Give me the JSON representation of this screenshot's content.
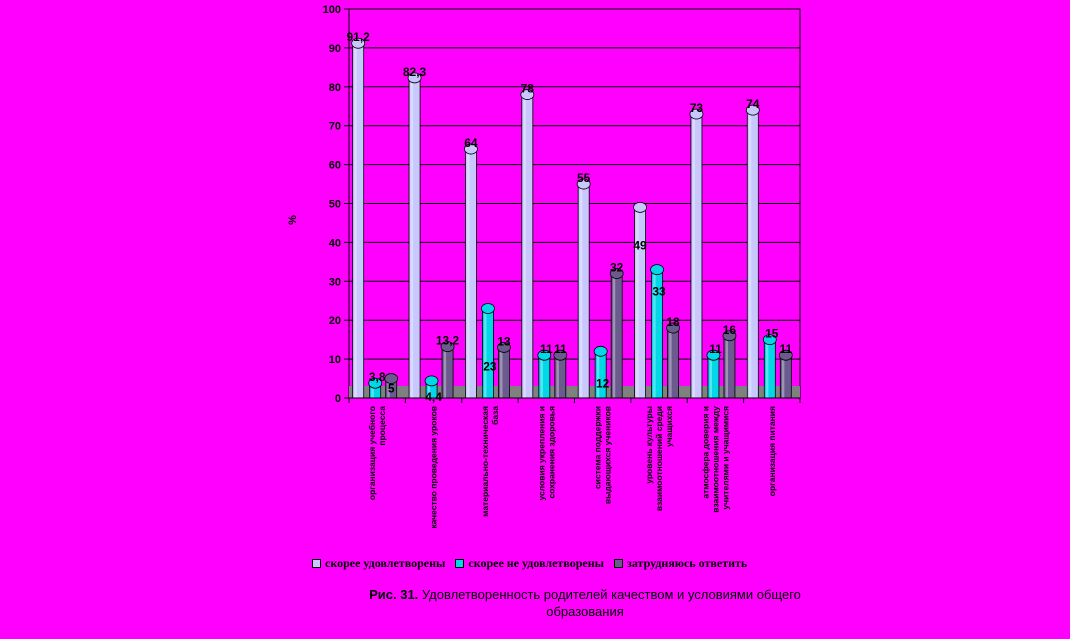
{
  "chart_data": {
    "type": "bar",
    "title": "",
    "ylabel": "%",
    "xlabel": "",
    "ylim": [
      0,
      100
    ],
    "yticks": [
      0,
      10,
      20,
      30,
      40,
      50,
      60,
      70,
      80,
      90,
      100
    ],
    "grid": true,
    "legend_position": "bottom",
    "categories": [
      "организация учебного процесса",
      "качество проведения уроков",
      "материально-техническая база",
      "условия укрепления и сохранения здоровья",
      "система поддержки выдающихся учеников",
      "уровень культуры взаимоотношений среди учащихся",
      "атмосфера доверия и взаимоотношения между учителями и учащимися",
      "организация питания"
    ],
    "series": [
      {
        "name": "скорее удовлетворены",
        "color": "#c8c8ff",
        "values": [
          91.2,
          82.3,
          64,
          78,
          55,
          49,
          73,
          74
        ],
        "labels": [
          "91,2",
          "82,3",
          "64",
          "78",
          "55",
          "49",
          "73",
          "74"
        ]
      },
      {
        "name": "скорее не удовлетворены",
        "color": "#00d8e8",
        "values": [
          3.8,
          4.4,
          23,
          11,
          12,
          33,
          11,
          15
        ],
        "labels": [
          "3,8",
          "4,4",
          "23",
          "11",
          "12",
          "33",
          "11",
          "15"
        ]
      },
      {
        "name": "затрудняюсь ответить",
        "color": "#6a5a8e",
        "values": [
          5,
          13.2,
          13,
          11,
          32,
          18,
          16,
          11
        ],
        "labels": [
          "5",
          "13,2",
          "13",
          "11",
          "32",
          "18",
          "16",
          "11"
        ]
      }
    ]
  },
  "caption": {
    "number": "Рис. 31.",
    "text": "Удовлетворенность родителей качеством и условиями общего образования"
  },
  "colors": {
    "background": "#ff00ff",
    "floor": "#808080",
    "gridline": "#000000"
  }
}
